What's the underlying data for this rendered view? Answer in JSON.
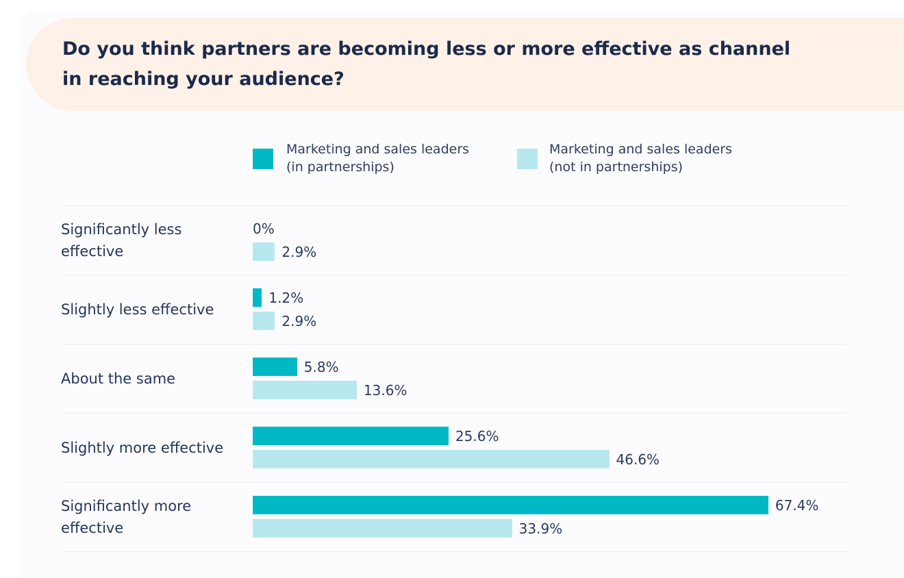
{
  "chart_data": {
    "type": "bar",
    "orientation": "horizontal",
    "title": "Do you think partners are becoming less or more effective as channel\nin reaching your audience?",
    "categories": [
      "Significantly less\neffective",
      "Slightly less effective",
      "About the same",
      "Slightly more effective",
      "Significantly more\neffective"
    ],
    "series": [
      {
        "name": "Marketing and sales leaders\n(in partnerships)",
        "color": "#00b9c5",
        "values": [
          0,
          1.2,
          5.8,
          25.6,
          67.4
        ],
        "labels": [
          "0%",
          "1.2%",
          "5.8%",
          "25.6%",
          "67.4%"
        ]
      },
      {
        "name": "Marketing and sales leaders\n(not in partnerships)",
        "color": "#b8e8ef",
        "values": [
          2.9,
          2.9,
          13.6,
          46.6,
          33.9
        ],
        "labels": [
          "2.9%",
          "2.9%",
          "13.6%",
          "46.6%",
          "33.9%"
        ]
      }
    ],
    "xlim": [
      0,
      100
    ],
    "xlabel": "",
    "ylabel": "",
    "legend": "top",
    "grid": false
  }
}
